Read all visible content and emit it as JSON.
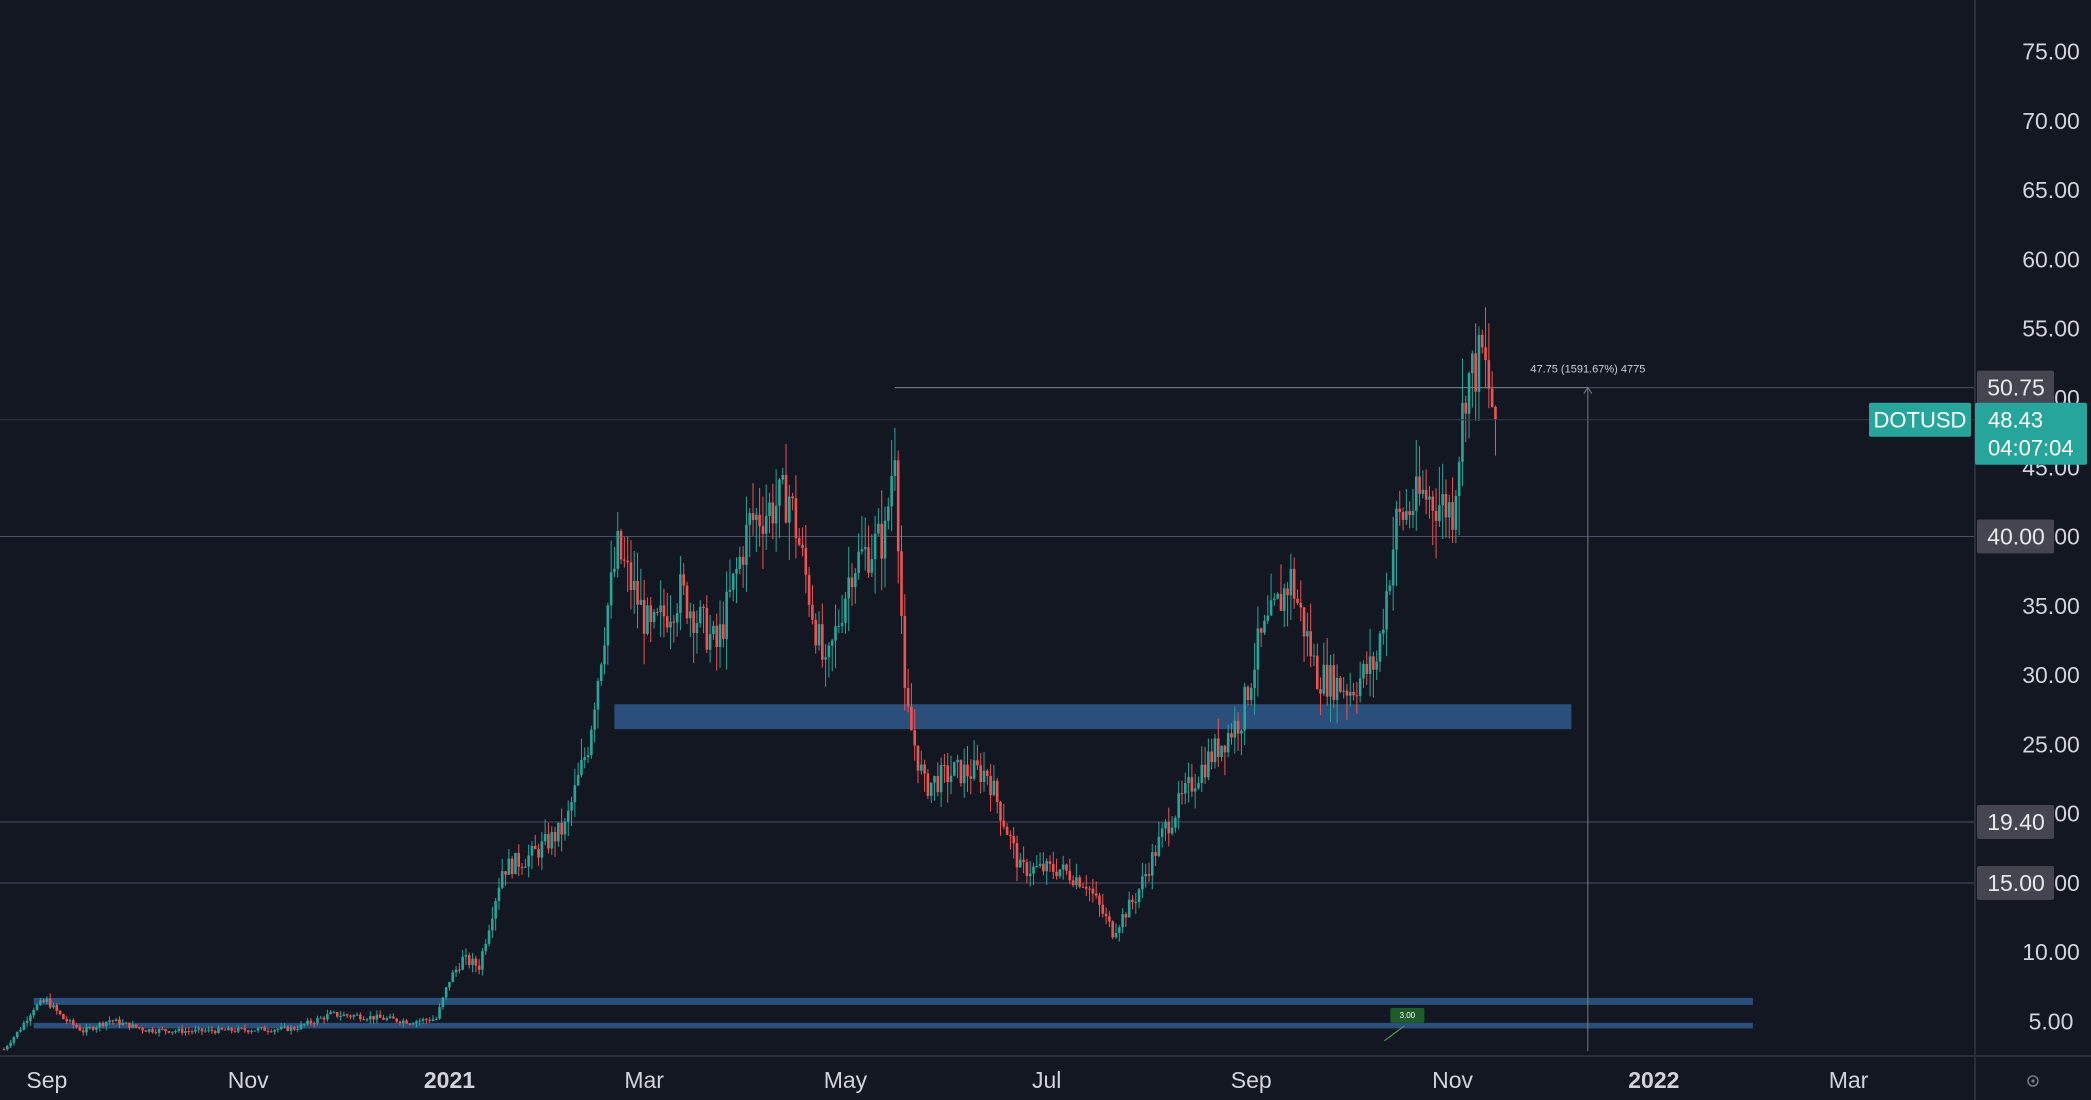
{
  "colors": {
    "background": "#131722",
    "up": "#26a69a",
    "down": "#ef5350",
    "zone": "#2a5280",
    "level_line": "#4a5060",
    "level_label_bg": "#434651",
    "symbol_badge": "#26a69a",
    "measure_line": "#787b86",
    "note_badge": "#1e5c2a"
  },
  "symbol": {
    "name": "DOTUSD",
    "price": "48.43",
    "countdown": "04:07:04"
  },
  "measure_label": "47.75 (1591.67%) 4775",
  "note_label": "3.00",
  "footer_icon": "settings-gear-icon",
  "chart_data": {
    "type": "candlestick",
    "title": "",
    "y_axis": {
      "ticks": [
        "75.00",
        "70.00",
        "65.00",
        "60.00",
        "55.00",
        "50.00",
        "45.00",
        "40.00",
        "35.00",
        "30.00",
        "25.00",
        "20.00",
        "15.00",
        "10.00",
        "5.00"
      ],
      "range": [
        1.5,
        78
      ],
      "scale": "linear"
    },
    "x_axis": {
      "labels": [
        {
          "text": "Sep",
          "date": "2020-09-01",
          "bold": false
        },
        {
          "text": "Nov",
          "date": "2020-11-01",
          "bold": false
        },
        {
          "text": "2021",
          "date": "2021-01-01",
          "bold": true
        },
        {
          "text": "Mar",
          "date": "2021-03-01",
          "bold": false
        },
        {
          "text": "May",
          "date": "2021-05-01",
          "bold": false
        },
        {
          "text": "Jul",
          "date": "2021-07-01",
          "bold": false
        },
        {
          "text": "Sep",
          "date": "2021-09-01",
          "bold": false
        },
        {
          "text": "Nov",
          "date": "2021-11-01",
          "bold": false
        },
        {
          "text": "2022",
          "date": "2022-01-01",
          "bold": true
        },
        {
          "text": "Mar",
          "date": "2022-03-01",
          "bold": false
        }
      ],
      "range": [
        "2020-08-19",
        "2022-04-25"
      ]
    },
    "price_path": [
      [
        "2020-08-19",
        3.0
      ],
      [
        "2020-08-24",
        4.5
      ],
      [
        "2020-08-28",
        6.0
      ],
      [
        "2020-09-01",
        6.5
      ],
      [
        "2020-09-06",
        5.2
      ],
      [
        "2020-09-12",
        4.3
      ],
      [
        "2020-09-20",
        5.1
      ],
      [
        "2020-10-01",
        4.4
      ],
      [
        "2020-10-15",
        4.3
      ],
      [
        "2020-11-01",
        4.4
      ],
      [
        "2020-11-15",
        4.5
      ],
      [
        "2020-11-26",
        5.5
      ],
      [
        "2020-12-05",
        5.4
      ],
      [
        "2020-12-20",
        5.0
      ],
      [
        "2020-12-28",
        5.2
      ],
      [
        "2021-01-01",
        8.0
      ],
      [
        "2021-01-05",
        9.5
      ],
      [
        "2021-01-10",
        9.0
      ],
      [
        "2021-01-17",
        16.0
      ],
      [
        "2021-01-26",
        17.0
      ],
      [
        "2021-02-05",
        19.0
      ],
      [
        "2021-02-12",
        25.0
      ],
      [
        "2021-02-18",
        35.0
      ],
      [
        "2021-02-21",
        39.0
      ],
      [
        "2021-03-03",
        33.0
      ],
      [
        "2021-03-12",
        36.0
      ],
      [
        "2021-03-23",
        32.0
      ],
      [
        "2021-04-02",
        41.0
      ],
      [
        "2021-04-14",
        43.0
      ],
      [
        "2021-04-25",
        30.0
      ],
      [
        "2021-05-03",
        38.0
      ],
      [
        "2021-05-13",
        40.0
      ],
      [
        "2021-05-16",
        47.0
      ],
      [
        "2021-05-19",
        28.0
      ],
      [
        "2021-05-25",
        22.0
      ],
      [
        "2021-06-03",
        23.0
      ],
      [
        "2021-06-13",
        23.0
      ],
      [
        "2021-06-23",
        16.0
      ],
      [
        "2021-07-05",
        16.0
      ],
      [
        "2021-07-13",
        15.0
      ],
      [
        "2021-07-21",
        11.5
      ],
      [
        "2021-07-28",
        14.0
      ],
      [
        "2021-08-06",
        19.0
      ],
      [
        "2021-08-16",
        23.0
      ],
      [
        "2021-08-29",
        27.0
      ],
      [
        "2021-09-03",
        32.0
      ],
      [
        "2021-09-13",
        37.0
      ],
      [
        "2021-09-21",
        30.0
      ],
      [
        "2021-10-01",
        29.0
      ],
      [
        "2021-10-09",
        31.0
      ],
      [
        "2021-10-15",
        41.0
      ],
      [
        "2021-10-23",
        43.0
      ],
      [
        "2021-11-01",
        42.0
      ],
      [
        "2021-11-05",
        51.0
      ],
      [
        "2021-11-10",
        53.0
      ],
      [
        "2021-11-14",
        48.43
      ]
    ],
    "horizontal_levels": [
      {
        "label": "50.75",
        "value": 50.75
      },
      {
        "label": "40.00",
        "value": 40.0
      },
      {
        "label": "19.40",
        "value": 19.4
      },
      {
        "label": "15.00",
        "value": 15.0
      }
    ],
    "zones": [
      {
        "from": "2021-02-20",
        "to": "2021-12-07",
        "low": 26.1,
        "high": 27.9
      },
      {
        "from": "2020-08-28",
        "to": "2022-01-31",
        "low": 6.2,
        "high": 6.7
      },
      {
        "from": "2020-08-28",
        "to": "2022-01-31",
        "low": 4.5,
        "high": 4.9
      }
    ],
    "measure": {
      "date": "2021-12-12",
      "from": 3.0,
      "to": 50.75
    },
    "last_price": 48.43
  }
}
